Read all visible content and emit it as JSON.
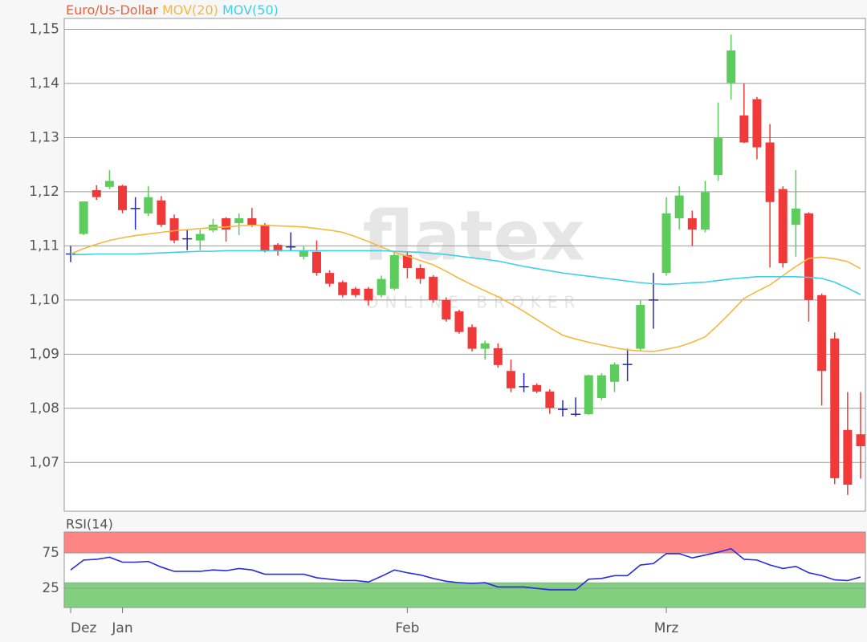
{
  "watermark": {
    "brand": "flatex",
    "tagline": "ONLINE BROKER"
  },
  "chart_data": [
    {
      "type": "candlestick",
      "ylim": [
        1.061,
        1.152
      ],
      "yticks": [
        {
          "value": 1.07,
          "label": "1,07"
        },
        {
          "value": 1.08,
          "label": "1,08"
        },
        {
          "value": 1.09,
          "label": "1,09"
        },
        {
          "value": 1.1,
          "label": "1,10"
        },
        {
          "value": 1.11,
          "label": "1,11"
        },
        {
          "value": 1.12,
          "label": "1,12"
        },
        {
          "value": 1.13,
          "label": "1,13"
        },
        {
          "value": 1.14,
          "label": "1,14"
        },
        {
          "value": 1.15,
          "label": "1,15"
        }
      ],
      "grid": true,
      "up_color": "#5ccc5c",
      "down_color": "#f03a3a",
      "doji_color": "#2a2ab0",
      "series": [
        {
          "name": "Euro/Us-Dollar",
          "color": "#f0603a",
          "open": [
            1.1085,
            1.1122,
            1.1203,
            1.1209,
            1.1211,
            1.1169,
            1.116,
            1.1184,
            1.1151,
            1.1113,
            1.111,
            1.1129,
            1.1151,
            1.1142,
            1.1151,
            1.1139,
            1.1102,
            1.1098,
            1.108,
            1.1089,
            1.105,
            1.1033,
            1.1021,
            1.1021,
            1.1009,
            1.1021,
            1.1083,
            1.1059,
            1.1043,
            1.1,
            1.0979,
            1.095,
            1.091,
            1.0911,
            1.0869,
            1.084,
            1.0843,
            1.0831,
            1.0798,
            1.0789,
            1.0789,
            1.0819,
            1.0849,
            1.0881,
            1.091,
            1.1,
            1.105,
            1.1151,
            1.1151,
            1.113,
            1.1231,
            1.1401,
            1.1341,
            1.1371,
            1.1291,
            1.1205,
            1.1139,
            1.116,
            1.1009,
            1.0929,
            1.076,
            1.0752
          ],
          "high": [
            1.11,
            1.1182,
            1.1212,
            1.124,
            1.1213,
            1.119,
            1.121,
            1.1192,
            1.1158,
            1.113,
            1.113,
            1.115,
            1.1153,
            1.116,
            1.117,
            1.1142,
            1.1105,
            1.1125,
            1.11,
            1.111,
            1.1055,
            1.1036,
            1.1024,
            1.1024,
            1.1045,
            1.109,
            1.109,
            1.1066,
            1.1046,
            1.1005,
            1.0982,
            1.0955,
            1.0925,
            1.092,
            1.089,
            1.0865,
            1.0846,
            1.0835,
            1.0815,
            1.082,
            1.0862,
            1.0865,
            1.0885,
            1.091,
            1.1,
            1.105,
            1.119,
            1.121,
            1.1165,
            1.122,
            1.1365,
            1.149,
            1.14,
            1.1375,
            1.1325,
            1.121,
            1.124,
            1.1162,
            1.1012,
            1.094,
            1.083,
            1.083
          ],
          "low": [
            1.107,
            1.112,
            1.1185,
            1.1205,
            1.116,
            1.113,
            1.1155,
            1.1135,
            1.1105,
            1.1092,
            1.1092,
            1.1125,
            1.1108,
            1.112,
            1.1135,
            1.1088,
            1.1082,
            1.109,
            1.1075,
            1.1045,
            1.1025,
            1.1005,
            1.1005,
            1.099,
            1.1005,
            1.1018,
            1.104,
            1.103,
            1.0995,
            1.096,
            1.0938,
            1.0905,
            1.089,
            1.0875,
            1.083,
            1.083,
            1.0828,
            1.079,
            1.0785,
            1.0785,
            1.0788,
            1.0815,
            1.083,
            1.085,
            1.0905,
            1.0947,
            1.1045,
            1.113,
            1.11,
            1.1125,
            1.122,
            1.137,
            1.129,
            1.126,
            1.106,
            1.106,
            1.108,
            1.096,
            1.0805,
            1.066,
            1.064,
            1.067
          ],
          "close": [
            1.1085,
            1.1182,
            1.119,
            1.122,
            1.1166,
            1.1169,
            1.119,
            1.1139,
            1.111,
            1.1113,
            1.1122,
            1.1139,
            1.113,
            1.1151,
            1.1139,
            1.109,
            1.109,
            1.1098,
            1.1092,
            1.105,
            1.103,
            1.1009,
            1.1009,
            1.0999,
            1.1039,
            1.1083,
            1.1059,
            1.1039,
            1.1,
            1.0964,
            1.0941,
            1.091,
            1.092,
            1.088,
            1.0837,
            1.084,
            1.0831,
            1.0801,
            1.0798,
            1.0789,
            1.0861,
            1.0861,
            1.0881,
            1.0881,
            1.0991,
            1.1,
            1.116,
            1.1193,
            1.113,
            1.1199,
            1.13,
            1.1461,
            1.1291,
            1.1282,
            1.1181,
            1.1068,
            1.1169,
            1.1,
            1.0869,
            1.0671,
            1.0659,
            1.073
          ]
        },
        {
          "name": "MOV(20)",
          "color": "#f5b83d",
          "values": [
            1.1085,
            1.1095,
            1.1103,
            1.111,
            1.1115,
            1.1119,
            1.1122,
            1.1125,
            1.1128,
            1.113,
            1.1132,
            1.1134,
            1.1135,
            1.1137,
            1.1138,
            1.1138,
            1.1137,
            1.1136,
            1.1135,
            1.1132,
            1.1129,
            1.1125,
            1.1117,
            1.1108,
            1.1098,
            1.1088,
            1.1081,
            1.1073,
            1.1065,
            1.1053,
            1.104,
            1.1028,
            1.1017,
            1.1006,
            1.0993,
            1.0979,
            1.0964,
            1.0949,
            1.0935,
            1.0928,
            1.0922,
            1.0917,
            1.0912,
            1.0908,
            1.0906,
            1.0905,
            1.0909,
            1.0914,
            1.0922,
            1.0932,
            1.0954,
            1.0978,
            1.1003,
            1.1016,
            1.1028,
            1.1045,
            1.1062,
            1.1077,
            1.1079,
            1.1076,
            1.1071,
            1.1058
          ]
        },
        {
          "name": "MOV(50)",
          "color": "#3ed0e8",
          "values": [
            1.1084,
            1.1084,
            1.1085,
            1.1085,
            1.1085,
            1.1085,
            1.1086,
            1.1087,
            1.1088,
            1.1089,
            1.109,
            1.109,
            1.1091,
            1.1091,
            1.1091,
            1.1091,
            1.1091,
            1.1091,
            1.1091,
            1.1091,
            1.1091,
            1.1091,
            1.1091,
            1.1091,
            1.1091,
            1.109,
            1.1089,
            1.1088,
            1.1086,
            1.1084,
            1.1081,
            1.1078,
            1.1075,
            1.1072,
            1.1067,
            1.1062,
            1.1058,
            1.1054,
            1.105,
            1.1047,
            1.1044,
            1.1041,
            1.1038,
            1.1035,
            1.1032,
            1.103,
            1.1029,
            1.103,
            1.1032,
            1.1033,
            1.1036,
            1.1039,
            1.1041,
            1.1043,
            1.1043,
            1.1043,
            1.1043,
            1.1042,
            1.104,
            1.1033,
            1.1022,
            1.101
          ]
        }
      ]
    },
    {
      "type": "line",
      "categories": [
        "Dez",
        null,
        null,
        null,
        "Jan",
        null,
        null,
        null,
        null,
        null,
        null,
        null,
        null,
        null,
        null,
        null,
        null,
        null,
        null,
        null,
        null,
        null,
        null,
        null,
        null,
        null,
        "Feb",
        null,
        null,
        null,
        null,
        null,
        null,
        null,
        null,
        null,
        null,
        null,
        null,
        null,
        null,
        null,
        null,
        null,
        null,
        null,
        "Mrz",
        null,
        null,
        null,
        null,
        null,
        null,
        null,
        null,
        null,
        null,
        null,
        null,
        null,
        null,
        null
      ],
      "ylim": [
        -2,
        104.5
      ],
      "yticks": [
        25,
        75
      ],
      "grid": true,
      "bands": [
        {
          "from": 75,
          "to": 104.5,
          "color": "#ff8484"
        },
        {
          "from": -2,
          "to": 33,
          "color": "#80d080"
        }
      ],
      "series": [
        {
          "name": "RSI(14)",
          "color": "#2a2ae0",
          "values": [
            51,
            65,
            66,
            69,
            62,
            62,
            63,
            55,
            49,
            49,
            49,
            51,
            50,
            53,
            51,
            45,
            45,
            45,
            45,
            40,
            38,
            36,
            36,
            34,
            42,
            51,
            47,
            44,
            39,
            35,
            33,
            32,
            33,
            27,
            27,
            27,
            25,
            23,
            23,
            23,
            38,
            39,
            43,
            43,
            58,
            60,
            74,
            74,
            68,
            72,
            76,
            81,
            66,
            65,
            58,
            53,
            56,
            47,
            43,
            37,
            36,
            41
          ]
        }
      ]
    }
  ]
}
